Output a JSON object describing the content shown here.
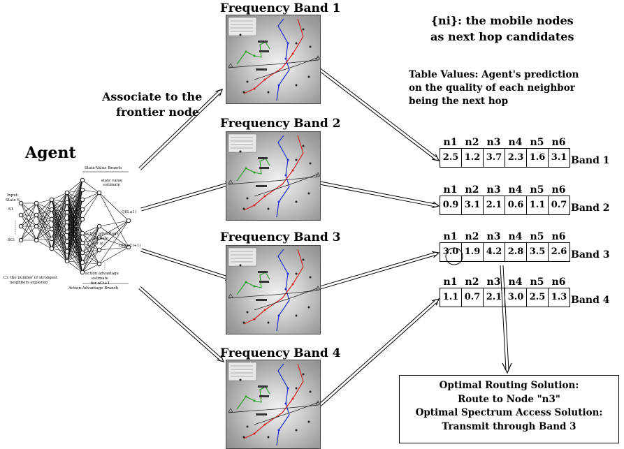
{
  "agent": {
    "title": "Agent",
    "state_value_branch": "State-Value Branch",
    "state_value_estimate": "state value estimate",
    "input_label_1": "Input:",
    "input_label_2": "State S",
    "s1": "S1",
    "sci": "SCi",
    "q1": "Q(S,a1)",
    "qci": "Q(S,aCi+1)",
    "action_adv_i_1": "action advantage",
    "action_adv_i_2": "estimate",
    "action_adv_i_3": "for ai",
    "action_adv_ci_1": "action advantage",
    "action_adv_ci_2": "estimate",
    "action_adv_ci_3": "for aCi+1",
    "action_adv_branch": "Action-Advantage Branch",
    "ci_note_1": "Ci: the number of strongest",
    "ci_note_2": "neighbors explored"
  },
  "associate_label_1": "Associate to the",
  "associate_label_2": "frontier node",
  "bands": [
    {
      "title": "Frequency Band 1"
    },
    {
      "title": "Frequency Band 2"
    },
    {
      "title": "Frequency Band 3"
    },
    {
      "title": "Frequency Band 4"
    }
  ],
  "mobile_nodes_note_1": "{ni}: the mobile nodes",
  "mobile_nodes_note_2": "as next hop candidates",
  "table_values_note_1": "Table Values: Agent's prediction",
  "table_values_note_2": "on the quality of each neighbor",
  "table_values_note_3": "being the next hop",
  "table_headers": [
    "n1",
    "n2",
    "n3",
    "n4",
    "n5",
    "n6"
  ],
  "tables": [
    {
      "label": "Band 1",
      "values": [
        "2.5",
        "1.2",
        "3.7",
        "2.3",
        "1.6",
        "3.1"
      ]
    },
    {
      "label": "Band 2",
      "values": [
        "0.9",
        "3.1",
        "2.1",
        "0.6",
        "1.1",
        "0.7"
      ]
    },
    {
      "label": "Band 3",
      "values": [
        "3.0",
        "1.9",
        "4.2",
        "2.8",
        "3.5",
        "2.6"
      ]
    },
    {
      "label": "Band 4",
      "values": [
        "1.1",
        "0.7",
        "2.1",
        "3.0",
        "2.5",
        "1.3"
      ]
    }
  ],
  "solution": {
    "line1": "Optimal Routing Solution:",
    "line2": "Route to Node \"n3\"",
    "line3": "Optimal Spectrum Access Solution:",
    "line4": "Transmit through Band 3"
  },
  "colors": {
    "red_route": "#d62020",
    "blue_route": "#2030d0",
    "green_route": "#20a020"
  }
}
